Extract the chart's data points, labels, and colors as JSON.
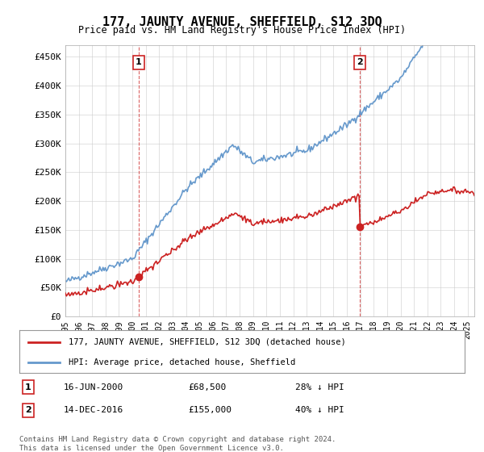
{
  "title": "177, JAUNTY AVENUE, SHEFFIELD, S12 3DQ",
  "subtitle": "Price paid vs. HM Land Registry's House Price Index (HPI)",
  "ylabel_ticks": [
    "£0",
    "£50K",
    "£100K",
    "£150K",
    "£200K",
    "£250K",
    "£300K",
    "£350K",
    "£400K",
    "£450K"
  ],
  "ytick_values": [
    0,
    50000,
    100000,
    150000,
    200000,
    250000,
    300000,
    350000,
    400000,
    450000
  ],
  "ylim": [
    0,
    470000
  ],
  "xlim_start": 1995.0,
  "xlim_end": 2025.5,
  "hpi_color": "#6699cc",
  "property_color": "#cc2222",
  "marker1_year": 2000.46,
  "marker1_value": 68500,
  "marker1_label": "1",
  "marker1_date": "16-JUN-2000",
  "marker1_price": "£68,500",
  "marker1_hpi": "28% ↓ HPI",
  "marker2_year": 2016.96,
  "marker2_value": 155000,
  "marker2_label": "2",
  "marker2_date": "14-DEC-2016",
  "marker2_price": "£155,000",
  "marker2_hpi": "40% ↓ HPI",
  "legend_property": "177, JAUNTY AVENUE, SHEFFIELD, S12 3DQ (detached house)",
  "legend_hpi": "HPI: Average price, detached house, Sheffield",
  "footnote": "Contains HM Land Registry data © Crown copyright and database right 2024.\nThis data is licensed under the Open Government Licence v3.0.",
  "background_color": "#ffffff",
  "grid_color": "#cccccc"
}
